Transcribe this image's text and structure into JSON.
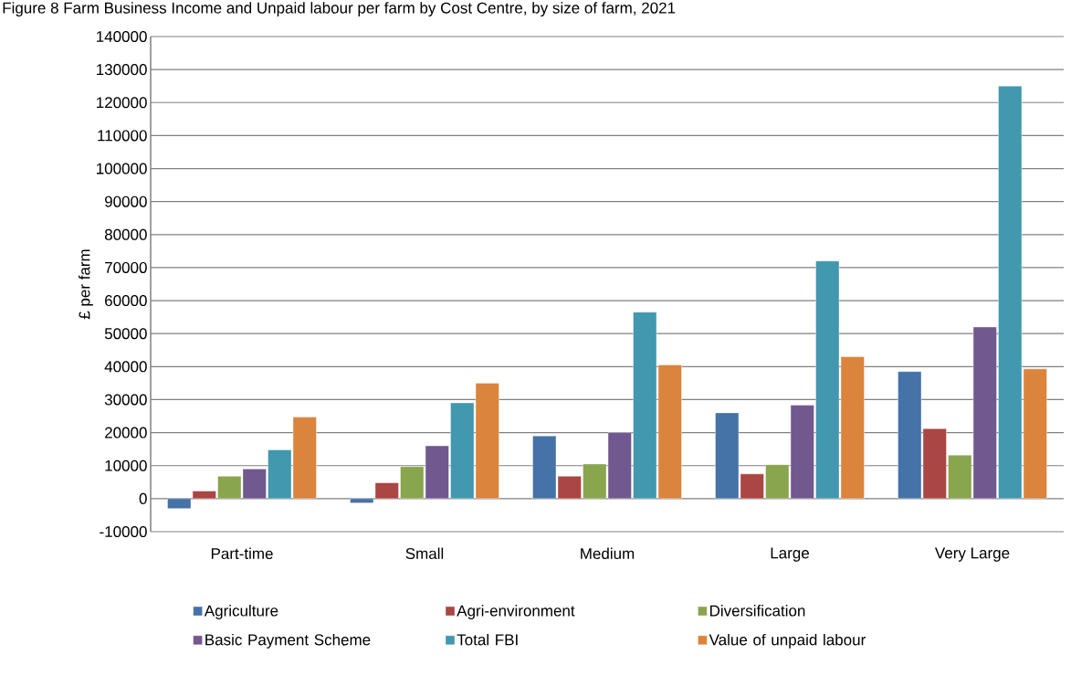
{
  "chart_data": {
    "type": "bar",
    "title": "Figure 8 Farm Business Income and Unpaid labour per farm by Cost Centre, by size of farm, 2021",
    "ylabel": "£ per farm",
    "categories": [
      "Part-time",
      "Small",
      "Medium",
      "Large",
      "Very Large"
    ],
    "series": [
      {
        "name": "Agriculture",
        "color": "#4572a7",
        "values": [
          -3000,
          -1300,
          19000,
          26000,
          38500
        ]
      },
      {
        "name": "Agri-environment",
        "color": "#aa4643",
        "values": [
          2300,
          4800,
          6800,
          7500,
          21200
        ]
      },
      {
        "name": "Diversification",
        "color": "#89a54e",
        "values": [
          6800,
          9700,
          10500,
          10300,
          13200
        ]
      },
      {
        "name": "Basic Payment Scheme",
        "color": "#71588f",
        "values": [
          9000,
          16000,
          20000,
          28300,
          52000
        ]
      },
      {
        "name": "Total FBI",
        "color": "#4198af",
        "values": [
          14800,
          29000,
          56500,
          72000,
          125000
        ]
      },
      {
        "name": "Value of unpaid labour",
        "color": "#db843d",
        "values": [
          24700,
          35000,
          40500,
          43000,
          39300
        ]
      }
    ],
    "ylim": [
      -10000,
      140000
    ],
    "yticks": [
      -10000,
      0,
      10000,
      20000,
      30000,
      40000,
      50000,
      60000,
      70000,
      80000,
      90000,
      100000,
      110000,
      120000,
      130000,
      140000
    ],
    "grid": "y",
    "legend": "bottom"
  }
}
